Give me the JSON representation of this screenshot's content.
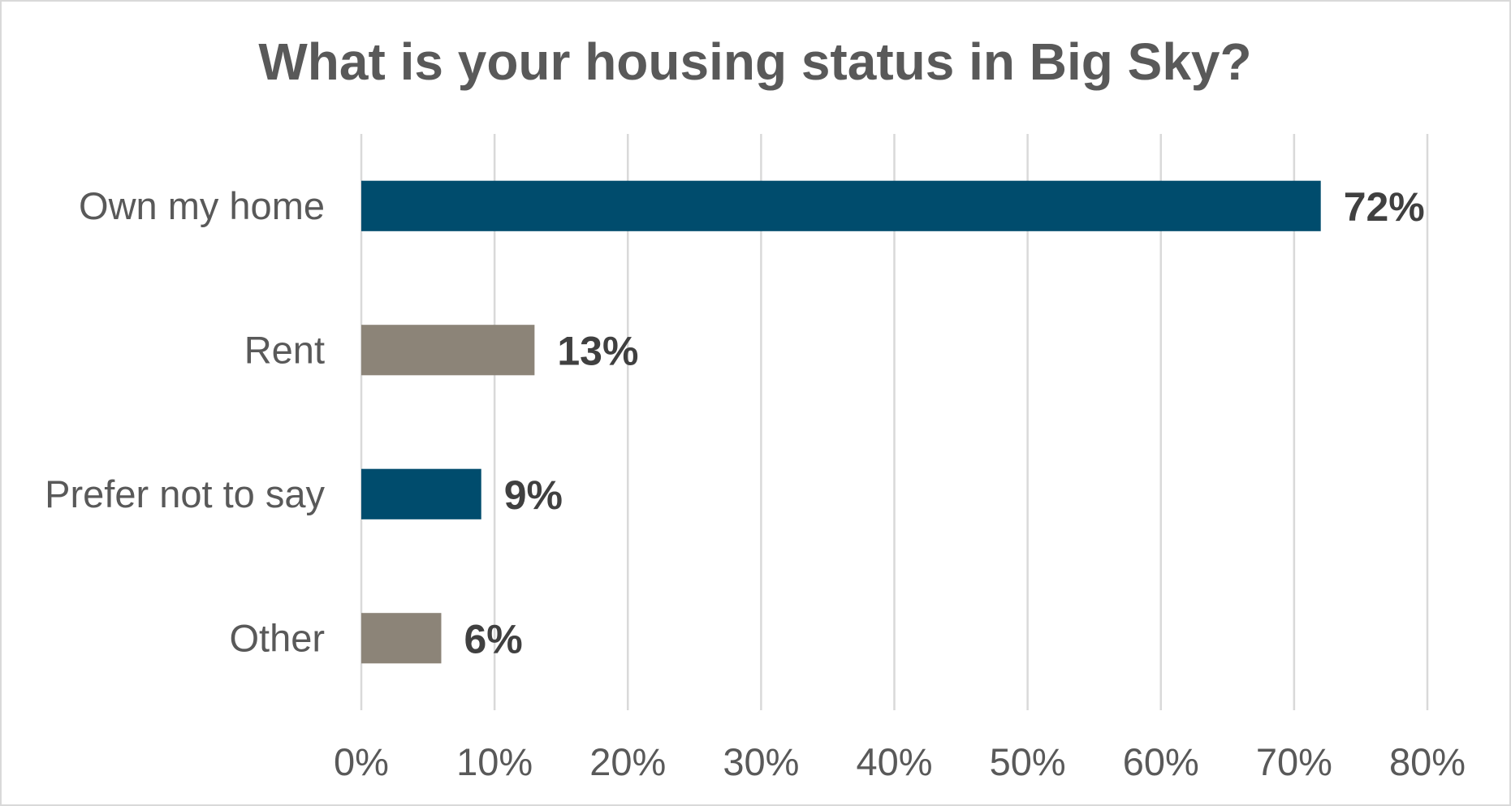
{
  "chart_data": {
    "type": "bar",
    "orientation": "horizontal",
    "title": "What is your housing status in Big Sky?",
    "categories": [
      "Own my home",
      "Rent",
      "Prefer not to say",
      "Other"
    ],
    "values": [
      72,
      13,
      9,
      6
    ],
    "data_labels": [
      "72%",
      "13%",
      "9%",
      "6%"
    ],
    "bar_colors": [
      "#004c6d",
      "#8c8478",
      "#004c6d",
      "#8c8478"
    ],
    "xlim": [
      0,
      80
    ],
    "xticks": [
      0,
      10,
      20,
      30,
      40,
      50,
      60,
      70,
      80
    ],
    "xtick_labels": [
      "0%",
      "10%",
      "20%",
      "30%",
      "40%",
      "50%",
      "60%",
      "70%",
      "80%"
    ],
    "xlabel": "",
    "ylabel": "",
    "grid": true,
    "legend": "none"
  }
}
